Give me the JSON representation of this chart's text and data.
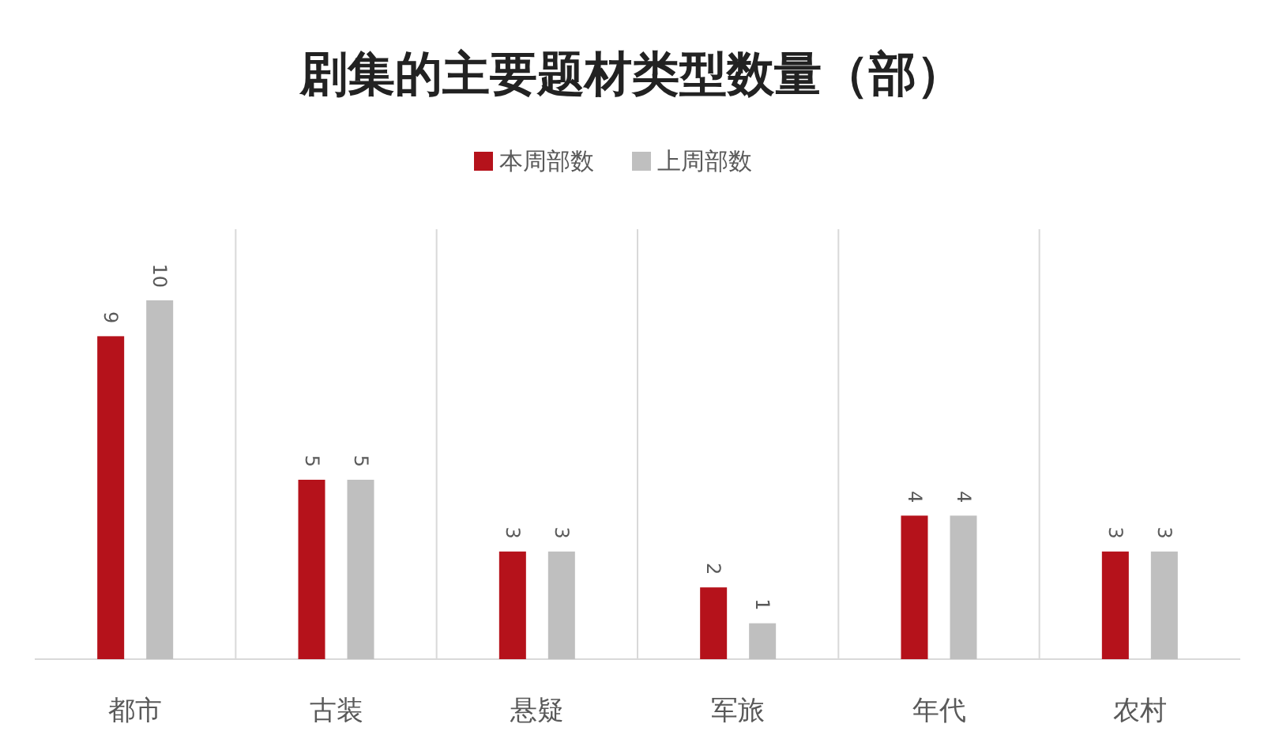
{
  "chart_data": {
    "type": "bar",
    "title": "剧集的主要题材类型数量（部）",
    "categories": [
      "都市",
      "古装",
      "悬疑",
      "军旅",
      "年代",
      "农村"
    ],
    "series": [
      {
        "name": "本周部数",
        "color": "#b5121b",
        "values": [
          9,
          5,
          3,
          2,
          4,
          3
        ]
      },
      {
        "name": "上周部数",
        "color": "#bfbfbf",
        "values": [
          10,
          5,
          3,
          1,
          4,
          3
        ]
      }
    ],
    "data_labels": true,
    "grid": "x",
    "legend": "top"
  }
}
